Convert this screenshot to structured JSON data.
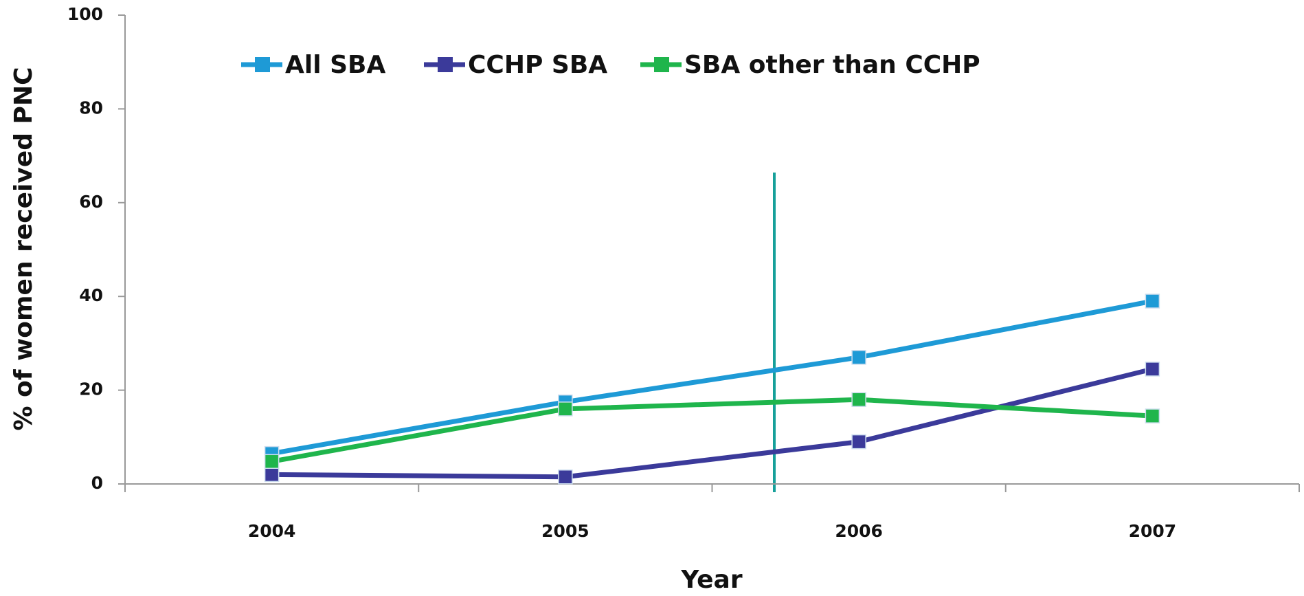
{
  "chart_data": {
    "type": "line",
    "x_label": "Year",
    "y_label": "% of women received PNC",
    "categories": [
      "2004",
      "2005",
      "2006",
      "2007"
    ],
    "series": [
      {
        "name": "All SBA",
        "color": "#1e9ad6",
        "values": [
          6.5,
          17.5,
          27,
          39
        ]
      },
      {
        "name": "CCHP SBA",
        "color": "#3b3a9a",
        "values": [
          2,
          1.5,
          9,
          24.5
        ]
      },
      {
        "name": "SBA other than CCHP",
        "color": "#1fb54c",
        "values": [
          4.8,
          16,
          18,
          14.5
        ]
      }
    ],
    "ylim": [
      0,
      100
    ],
    "yticks": [
      0,
      20,
      40,
      60,
      80,
      100
    ],
    "grid": false
  }
}
